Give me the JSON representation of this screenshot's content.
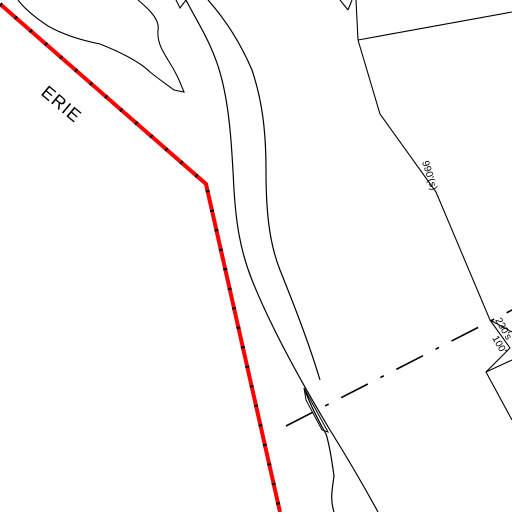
{
  "map": {
    "colors": {
      "background": "#ffffff",
      "linework": "#000000",
      "boundary_fill": "#ff0000",
      "boundary_dash": "#000000"
    },
    "labels": {
      "county": "ERIE",
      "parcel_dim_1": "990'(s)",
      "parcel_dim_2": "230's",
      "parcel_dim_3": "100'"
    }
  }
}
